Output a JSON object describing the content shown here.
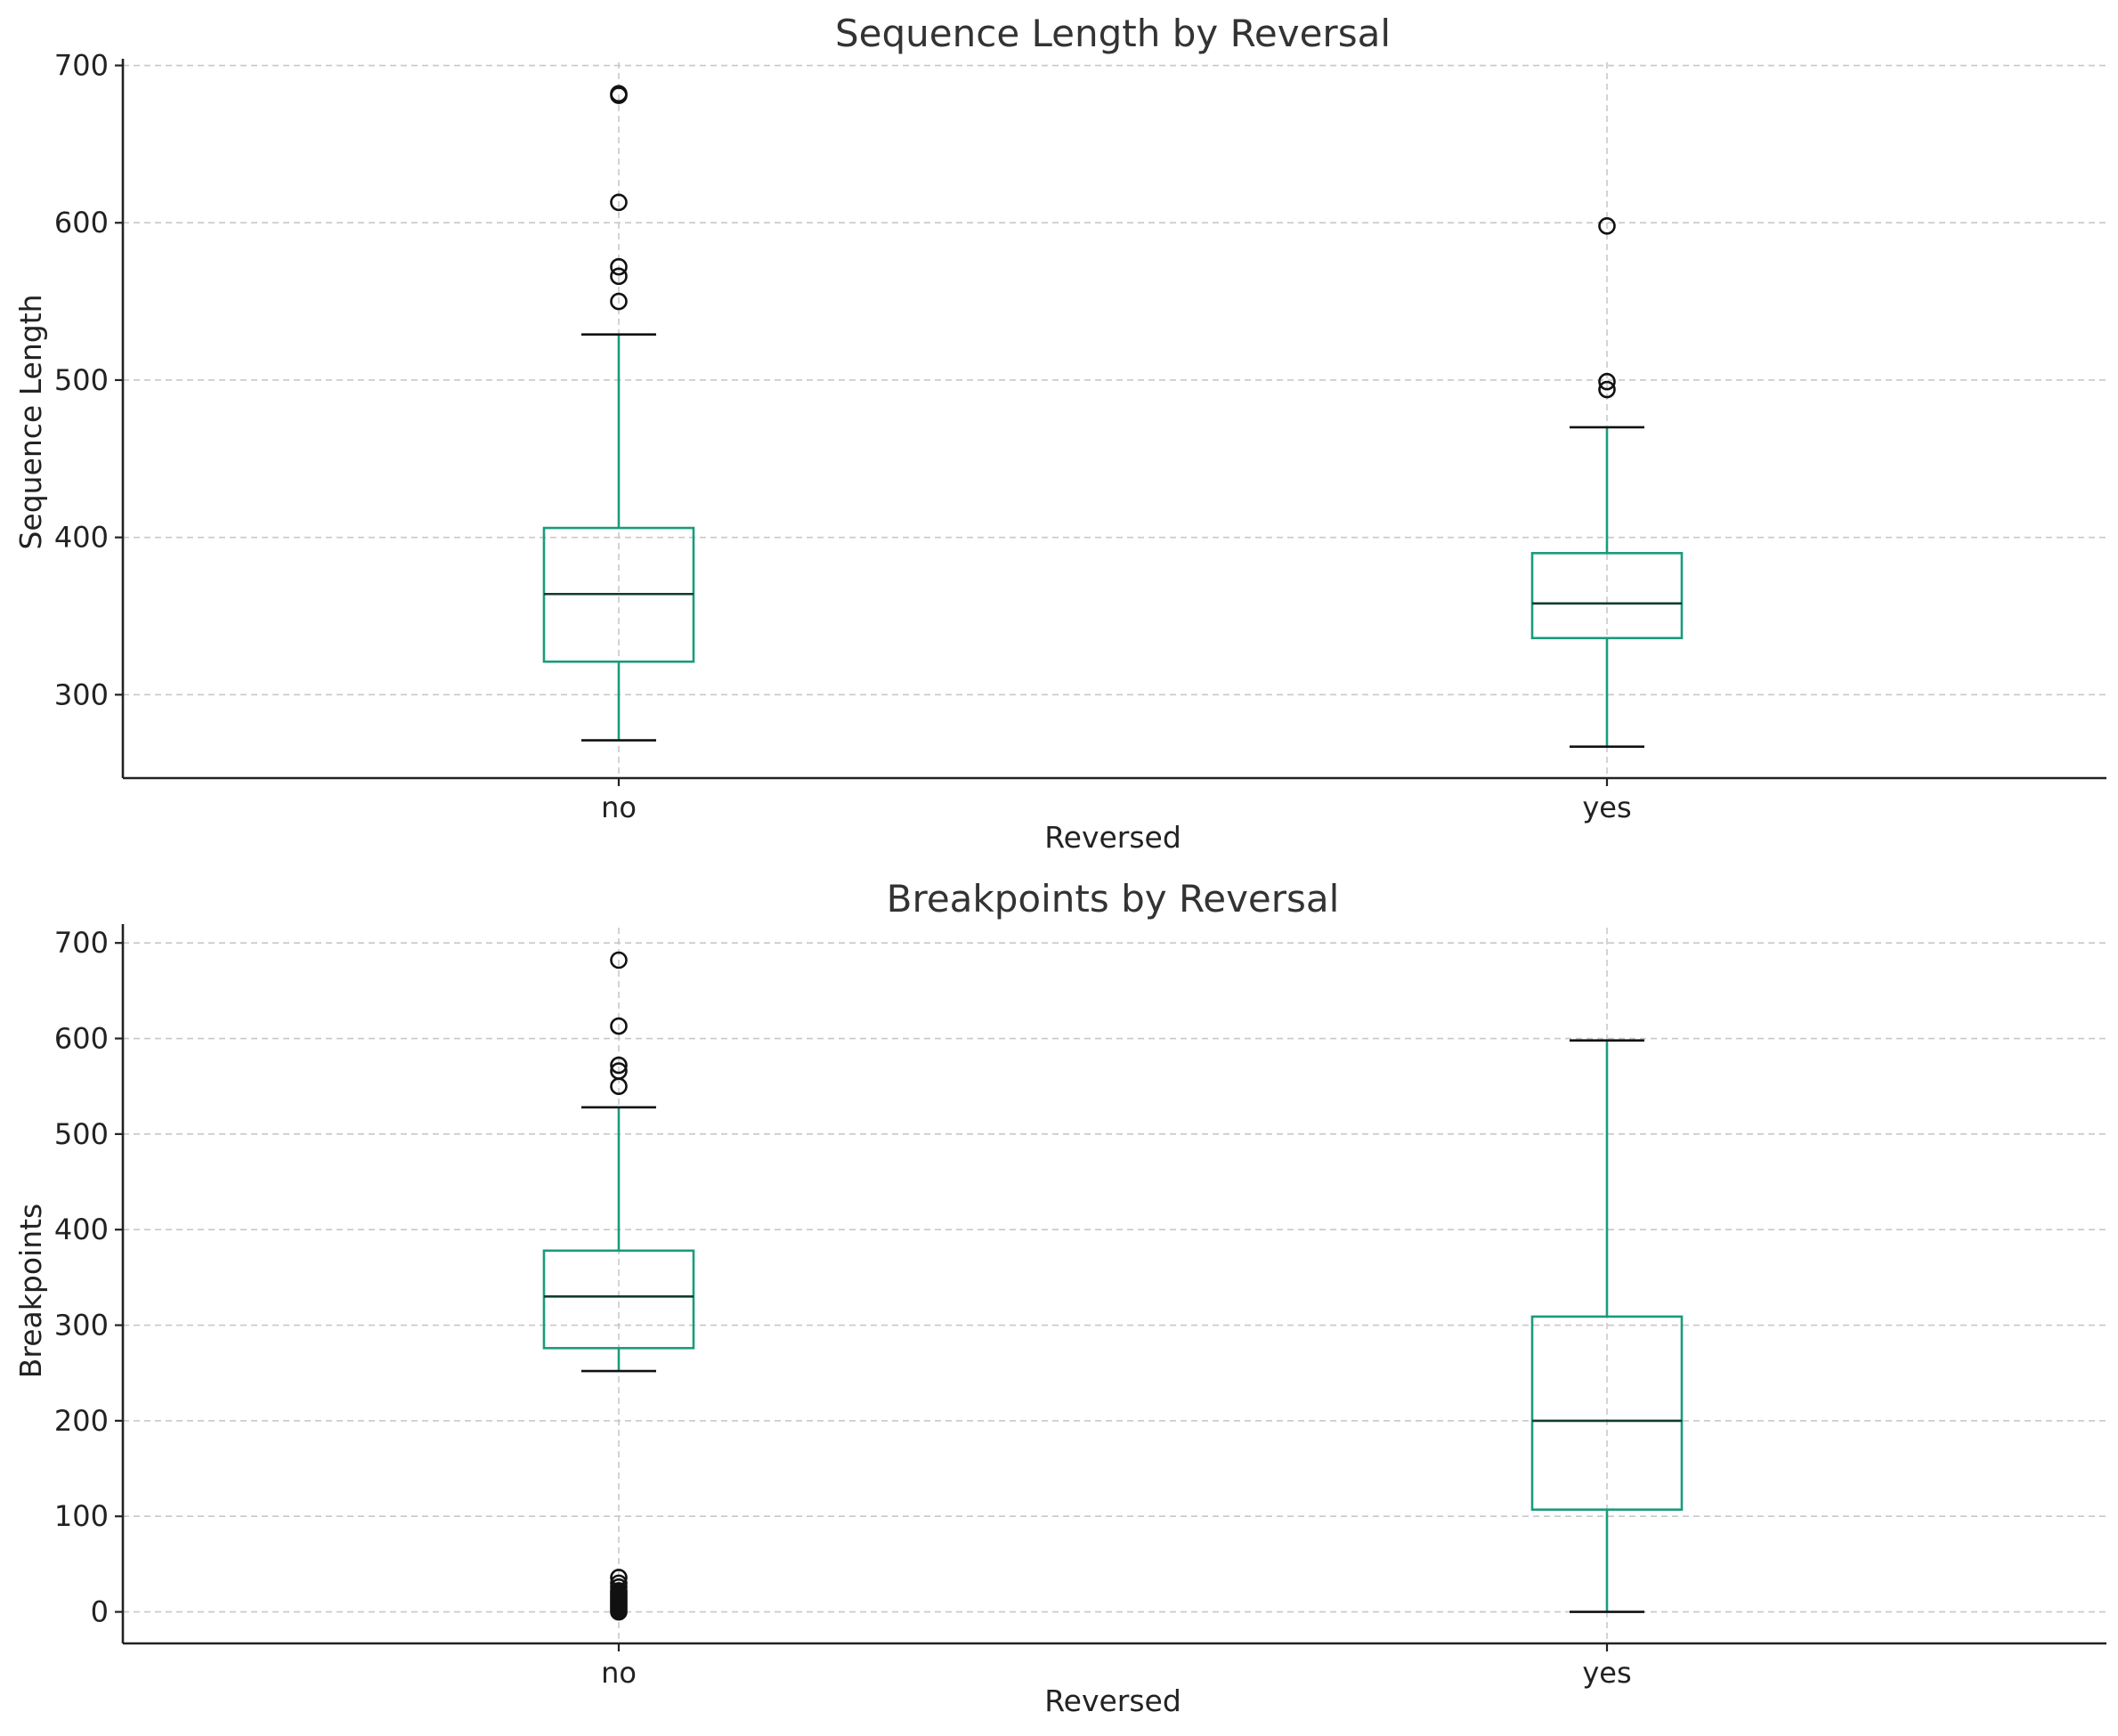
{
  "colors": {
    "box": "#1a9b7c",
    "median": "#0f3d30",
    "cap": "#111111",
    "flier": "#111111",
    "grid": "#c8c8c8",
    "axis": "#222222"
  },
  "chart_data": [
    {
      "type": "box",
      "title": "Sequence Length by Reversal",
      "xlabel": "Reversed",
      "ylabel": "Sequence Length",
      "categories": [
        "no",
        "yes"
      ],
      "ylim": [
        247,
        702
      ],
      "yticks": [
        300,
        400,
        500,
        600,
        700
      ],
      "grid": true,
      "legend": "none",
      "boxes": [
        {
          "category": "no",
          "whisker_low": 271,
          "q1": 321,
          "median": 364,
          "q3": 406,
          "whisker_high": 529,
          "fliers": [
            550,
            566,
            572,
            613,
            681,
            682
          ]
        },
        {
          "category": "yes",
          "whisker_low": 267,
          "q1": 336,
          "median": 358,
          "q3": 390,
          "whisker_high": 470,
          "fliers": [
            494,
            499,
            598
          ]
        }
      ]
    },
    {
      "type": "box",
      "title": "Breakpoints by Reversal",
      "xlabel": "Reversed",
      "ylabel": "Breakpoints",
      "categories": [
        "no",
        "yes"
      ],
      "ylim": [
        -33,
        716
      ],
      "yticks": [
        0,
        100,
        200,
        300,
        400,
        500,
        600,
        700
      ],
      "grid": true,
      "legend": "none",
      "boxes": [
        {
          "category": "no",
          "whisker_low": 252,
          "q1": 276,
          "median": 330,
          "q3": 378,
          "whisker_high": 528,
          "fliers": [
            0,
            2,
            4,
            6,
            8,
            10,
            12,
            14,
            16,
            18,
            20,
            22,
            26,
            30,
            36,
            550,
            566,
            572,
            613,
            682
          ]
        },
        {
          "category": "yes",
          "whisker_low": 0,
          "q1": 107,
          "median": 200,
          "q3": 309,
          "whisker_high": 598,
          "fliers": []
        }
      ]
    }
  ]
}
